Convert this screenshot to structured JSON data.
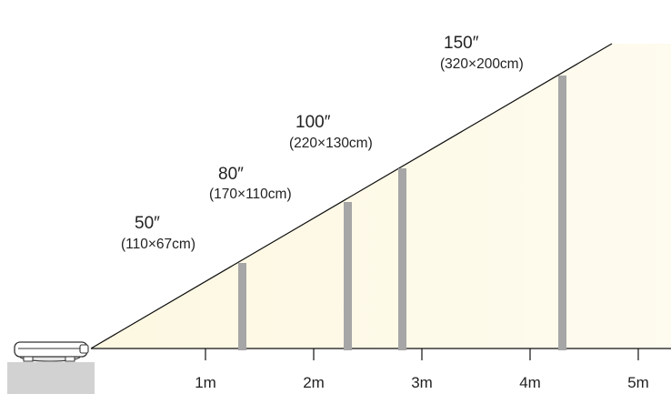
{
  "diagram": {
    "screens": [
      {
        "size": "50″",
        "dimensions": "(110×67cm)",
        "distance_m": 1.33
      },
      {
        "size": "80″",
        "dimensions": "(170×110cm)",
        "distance_m": 2.24
      },
      {
        "size": "100″",
        "dimensions": "(220×130cm)",
        "distance_m": 2.76
      },
      {
        "size": "150″",
        "dimensions": "(320×200cm)",
        "distance_m": 4.27
      }
    ],
    "axis": {
      "ticks": [
        "1m",
        "2m",
        "3m",
        "4m",
        "5m"
      ]
    },
    "colors": {
      "beam_fill": "#fdf8e1",
      "screen_bar": "#a6a6a6",
      "beam_edge": "#111111",
      "table": "#d2d2d2"
    }
  }
}
